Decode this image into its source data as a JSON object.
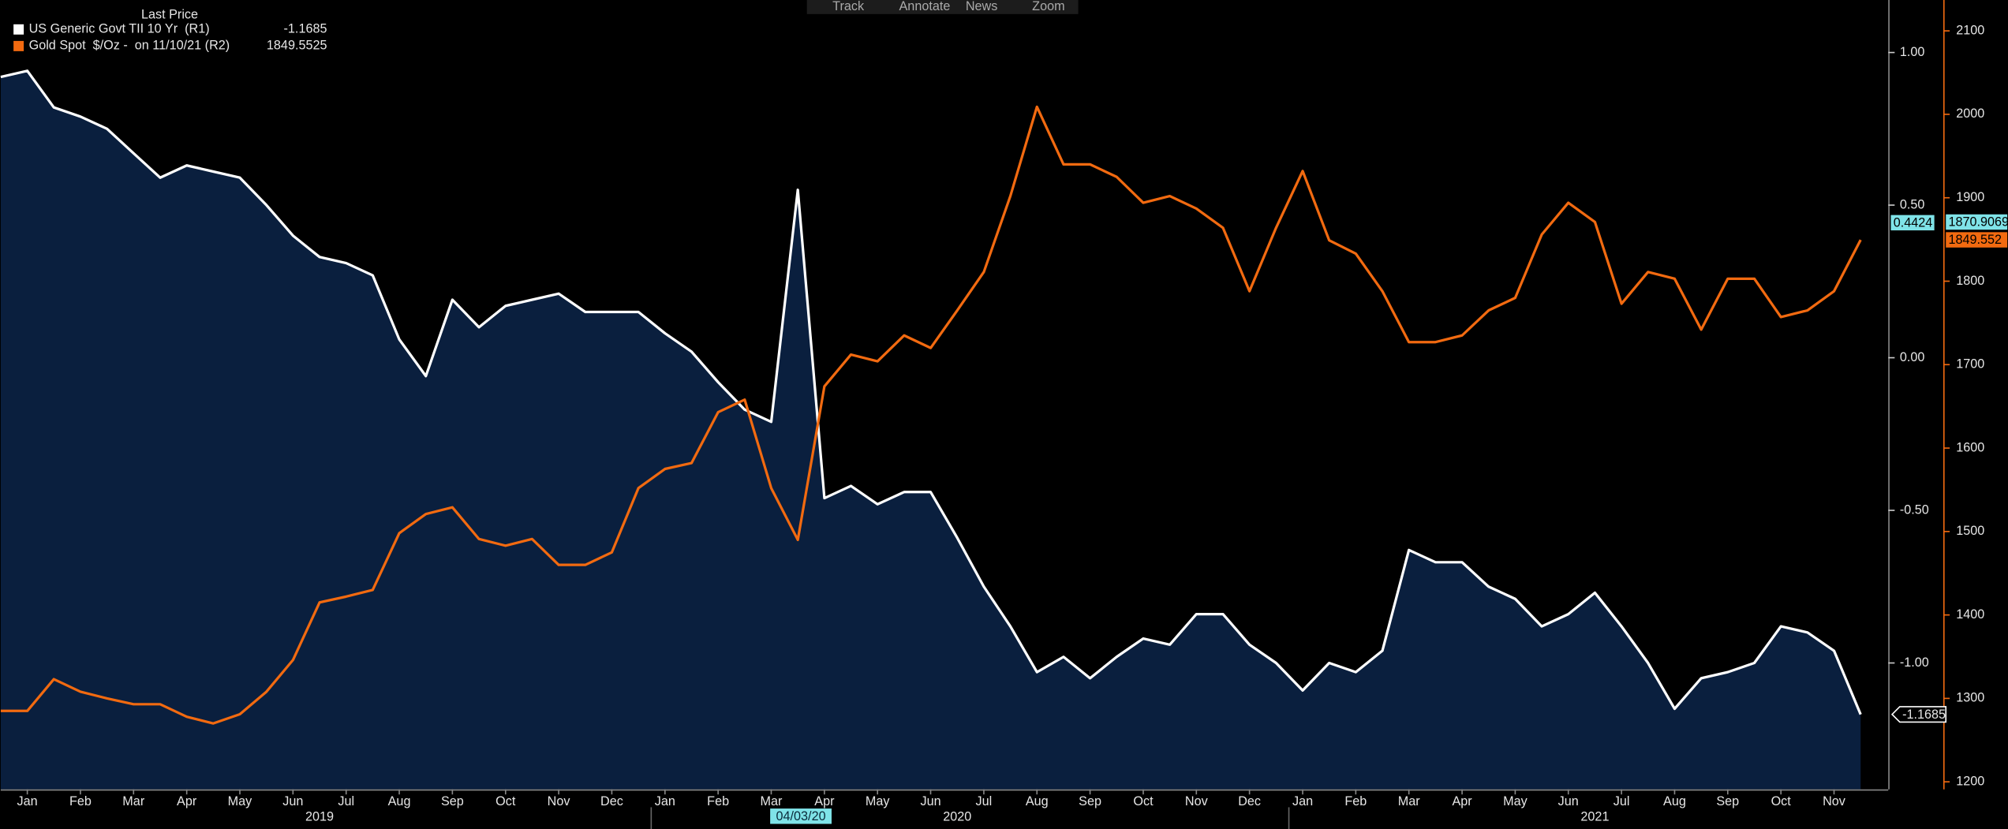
{
  "chart_data": {
    "type": "line",
    "toolbar": [
      "Track",
      "Annotate",
      "News",
      "Zoom"
    ],
    "legend_title": "Last Price",
    "x": [
      2019,
      2019.0417,
      2019.0833,
      2019.125,
      2019.1667,
      2019.2083,
      2019.25,
      2019.2917,
      2019.3333,
      2019.375,
      2019.4167,
      2019.4583,
      2019.5,
      2019.5417,
      2019.5833,
      2019.625,
      2019.6667,
      2019.7083,
      2019.75,
      2019.7917,
      2019.8333,
      2019.875,
      2019.9167,
      2019.9583,
      2020,
      2020.0417,
      2020.0833,
      2020.125,
      2020.1667,
      2020.2083,
      2020.25,
      2020.2917,
      2020.3333,
      2020.375,
      2020.4167,
      2020.4583,
      2020.5,
      2020.5417,
      2020.5833,
      2020.625,
      2020.6667,
      2020.7083,
      2020.75,
      2020.7917,
      2020.8333,
      2020.875,
      2020.9167,
      2020.9583,
      2021,
      2021.0417,
      2021.0833,
      2021.125,
      2021.1667,
      2021.2083,
      2021.25,
      2021.2917,
      2021.3333,
      2021.375,
      2021.4167,
      2021.4583,
      2021.5,
      2021.5417,
      2021.5833,
      2021.625,
      2021.6667,
      2021.7083,
      2021.75,
      2021.7917,
      2021.8333,
      2021.875,
      2021.9167
    ],
    "series": [
      {
        "name": "US Generic Govt TII 10 Yr  (R1)",
        "color": "#ffffff",
        "fill": "#0a1f3e",
        "axis": "y",
        "values": [
          0.92,
          0.94,
          0.82,
          0.79,
          0.75,
          0.67,
          0.59,
          0.63,
          0.61,
          0.59,
          0.5,
          0.4,
          0.33,
          0.31,
          0.27,
          0.06,
          -0.06,
          0.19,
          0.1,
          0.17,
          0.19,
          0.21,
          0.15,
          0.15,
          0.15,
          0.08,
          0.02,
          -0.08,
          -0.17,
          -0.21,
          0.55,
          -0.46,
          -0.42,
          -0.48,
          -0.44,
          -0.44,
          -0.59,
          -0.75,
          -0.88,
          -1.03,
          -0.98,
          -1.05,
          -0.98,
          -0.92,
          -0.94,
          -0.84,
          -0.84,
          -0.94,
          -1.0,
          -1.09,
          -1.0,
          -1.03,
          -0.96,
          -0.63,
          -0.67,
          -0.67,
          -0.75,
          -0.79,
          -0.88,
          -0.84,
          -0.77,
          -0.88,
          -1.0,
          -1.15,
          -1.05,
          -1.03,
          -1.0,
          -0.88,
          -0.9,
          -0.96,
          -1.1685
        ]
      },
      {
        "name": "Gold Spot  $/Oz -  on 11/10/21 (R2)",
        "color": "#f26a10",
        "axis": "y2",
        "values": [
          1285,
          1285,
          1323,
          1308,
          1300,
          1293,
          1293,
          1278,
          1270,
          1281,
          1308,
          1346,
          1415,
          1422,
          1430,
          1498,
          1521,
          1529,
          1491,
          1483,
          1491,
          1460,
          1460,
          1475,
          1552,
          1575,
          1582,
          1643,
          1658,
          1552,
          1490,
          1674,
          1712,
          1704,
          1735,
          1720,
          1765,
          1811,
          1902,
          2009,
          1940,
          1940,
          1925,
          1894,
          1902,
          1887,
          1864,
          1788,
          1864,
          1932,
          1849,
          1833,
          1788,
          1727,
          1727,
          1735,
          1765,
          1780,
          1856,
          1894,
          1871,
          1773,
          1811,
          1803,
          1742,
          1803,
          1803,
          1757,
          1765,
          1788,
          1849.5525
        ]
      }
    ],
    "xlim": [
      2019,
      2021.95
    ],
    "xticks": [
      {
        "value": 2019.0417,
        "label": "Jan"
      },
      {
        "value": 2019.125,
        "label": "Feb"
      },
      {
        "value": 2019.2083,
        "label": "Mar"
      },
      {
        "value": 2019.2917,
        "label": "Apr"
      },
      {
        "value": 2019.375,
        "label": "May"
      },
      {
        "value": 2019.4583,
        "label": "Jun"
      },
      {
        "value": 2019.5417,
        "label": "Jul"
      },
      {
        "value": 2019.625,
        "label": "Aug"
      },
      {
        "value": 2019.7083,
        "label": "Sep"
      },
      {
        "value": 2019.7917,
        "label": "Oct"
      },
      {
        "value": 2019.875,
        "label": "Nov"
      },
      {
        "value": 2019.9583,
        "label": "Dec"
      },
      {
        "value": 2020.0417,
        "label": "Jan"
      },
      {
        "value": 2020.125,
        "label": "Feb"
      },
      {
        "value": 2020.2083,
        "label": "Mar"
      },
      {
        "value": 2020.2917,
        "label": "Apr"
      },
      {
        "value": 2020.375,
        "label": "May"
      },
      {
        "value": 2020.4583,
        "label": "Jun"
      },
      {
        "value": 2020.5417,
        "label": "Jul"
      },
      {
        "value": 2020.625,
        "label": "Aug"
      },
      {
        "value": 2020.7083,
        "label": "Sep"
      },
      {
        "value": 2020.7917,
        "label": "Oct"
      },
      {
        "value": 2020.875,
        "label": "Nov"
      },
      {
        "value": 2020.9583,
        "label": "Dec"
      },
      {
        "value": 2021.0417,
        "label": "Jan"
      },
      {
        "value": 2021.125,
        "label": "Feb"
      },
      {
        "value": 2021.2083,
        "label": "Mar"
      },
      {
        "value": 2021.2917,
        "label": "Apr"
      },
      {
        "value": 2021.375,
        "label": "May"
      },
      {
        "value": 2021.4583,
        "label": "Jun"
      },
      {
        "value": 2021.5417,
        "label": "Jul"
      },
      {
        "value": 2021.625,
        "label": "Aug"
      },
      {
        "value": 2021.7083,
        "label": "Sep"
      },
      {
        "value": 2021.7917,
        "label": "Oct"
      },
      {
        "value": 2021.875,
        "label": "Nov"
      }
    ],
    "year_ticks": [
      {
        "value": 2019.5,
        "label": "2019"
      },
      {
        "value": 2020.5,
        "label": "2020"
      },
      {
        "value": 2021.5,
        "label": "2021"
      }
    ],
    "crosshair": {
      "value": 2020.2548,
      "label": "04/03/20"
    },
    "ylim": [
      -1.414,
      1.172
    ],
    "yticks": [
      {
        "value": -1,
        "label": "-1.00"
      },
      {
        "value": -0.5,
        "label": "-0.50"
      },
      {
        "value": 0,
        "label": "0.00"
      },
      {
        "value": 0.5,
        "label": "0.50"
      },
      {
        "value": 1,
        "label": "1.00"
      }
    ],
    "y2lim": [
      1191,
      2137
    ],
    "y2ticks": [
      1200,
      1300,
      1400,
      1500,
      1600,
      1700,
      1800,
      1900,
      2000,
      2100
    ],
    "value_tags": [
      {
        "value": 0.4424,
        "axis": "y",
        "color": "#7fe3e8"
      },
      {
        "value": 1870.9069,
        "axis": "y2",
        "color": "#7fe3e8"
      },
      {
        "value": 1849.552,
        "axis": "y2",
        "color": "#f26a10"
      }
    ]
  }
}
